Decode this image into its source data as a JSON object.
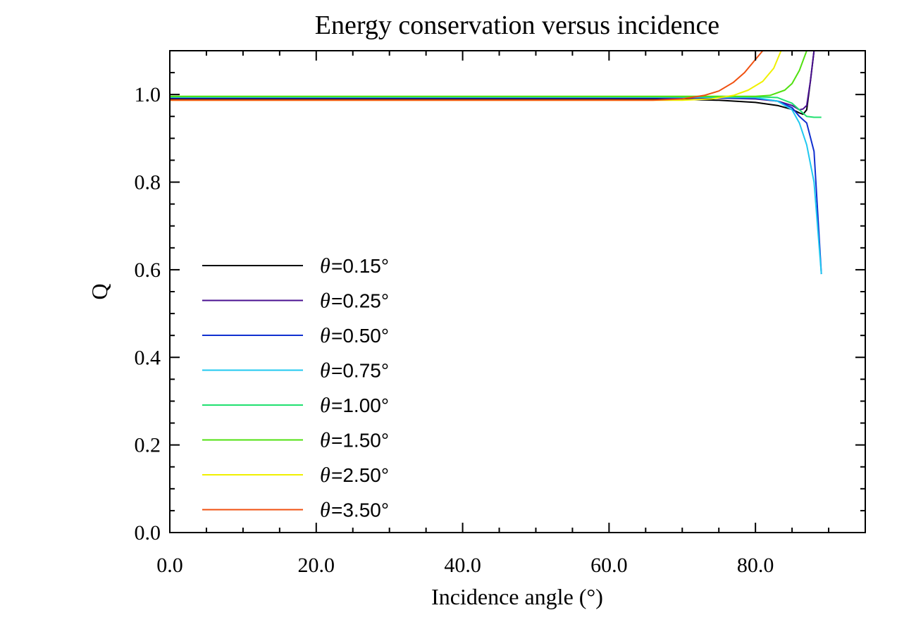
{
  "chart_data": {
    "type": "line",
    "title": "Energy conservation versus incidence",
    "xlabel": "Incidence angle  (°)",
    "ylabel": "Q",
    "xlim": [
      0,
      95
    ],
    "ylim": [
      0,
      1.1
    ],
    "xticks": [
      0,
      20,
      40,
      60,
      80
    ],
    "xtick_labels": [
      "0.0",
      "20.0",
      "40.0",
      "60.0",
      "80.0"
    ],
    "x_minor_step": 5,
    "yticks": [
      0,
      0.2,
      0.4,
      0.6,
      0.8,
      1.0
    ],
    "ytick_labels": [
      "0.0",
      "0.2",
      "0.4",
      "0.6",
      "0.8",
      "1.0"
    ],
    "y_minor_step": 0.05,
    "grid": false,
    "legend_position": "left",
    "legend_symbol": "θ",
    "series": [
      {
        "name": "=0.15°",
        "color": "#000000",
        "x": [
          0,
          60,
          70,
          75,
          80,
          83,
          85,
          86,
          86.5,
          87,
          87.5,
          88
        ],
        "y": [
          0.99,
          0.99,
          0.989,
          0.987,
          0.982,
          0.975,
          0.966,
          0.958,
          0.955,
          0.965,
          1.03,
          1.1
        ]
      },
      {
        "name": "=0.25°",
        "color": "#4a1090",
        "x": [
          0,
          60,
          70,
          75,
          80,
          83,
          85,
          86,
          86.5,
          87,
          87.5,
          88
        ],
        "y": [
          0.992,
          0.992,
          0.992,
          0.992,
          0.99,
          0.985,
          0.975,
          0.965,
          0.967,
          0.975,
          1.03,
          1.1
        ]
      },
      {
        "name": "=0.50°",
        "color": "#1030d0",
        "x": [
          0,
          60,
          70,
          80,
          83,
          85,
          86,
          87,
          88,
          89
        ],
        "y": [
          0.993,
          0.993,
          0.993,
          0.992,
          0.985,
          0.97,
          0.95,
          0.935,
          0.87,
          0.59
        ]
      },
      {
        "name": "=0.75°",
        "color": "#20c8f0",
        "x": [
          0,
          60,
          70,
          80,
          83,
          85,
          86,
          87,
          88,
          89
        ],
        "y": [
          0.994,
          0.994,
          0.994,
          0.993,
          0.985,
          0.965,
          0.935,
          0.885,
          0.8,
          0.59
        ]
      },
      {
        "name": "=1.00°",
        "color": "#20e070",
        "x": [
          0,
          60,
          70,
          80,
          83,
          85,
          86,
          87,
          88,
          89
        ],
        "y": [
          0.995,
          0.995,
          0.995,
          0.995,
          0.993,
          0.98,
          0.965,
          0.95,
          0.948,
          0.948
        ]
      },
      {
        "name": "=1.50°",
        "color": "#50e010",
        "x": [
          0,
          60,
          70,
          75,
          78,
          80,
          82,
          84,
          85,
          86,
          87
        ],
        "y": [
          0.996,
          0.996,
          0.996,
          0.996,
          0.996,
          0.996,
          0.998,
          1.01,
          1.025,
          1.055,
          1.1
        ]
      },
      {
        "name": "=2.50°",
        "color": "#f0f000",
        "x": [
          0,
          60,
          70,
          74,
          77,
          79,
          81,
          82.5,
          83.5
        ],
        "y": [
          0.987,
          0.987,
          0.987,
          0.99,
          0.998,
          1.01,
          1.03,
          1.06,
          1.1
        ]
      },
      {
        "name": "=3.50°",
        "color": "#f05010",
        "x": [
          0,
          60,
          66,
          70,
          73,
          75,
          77,
          78.5,
          80,
          81
        ],
        "y": [
          0.987,
          0.987,
          0.987,
          0.99,
          0.998,
          1.008,
          1.028,
          1.05,
          1.08,
          1.1
        ]
      }
    ]
  }
}
